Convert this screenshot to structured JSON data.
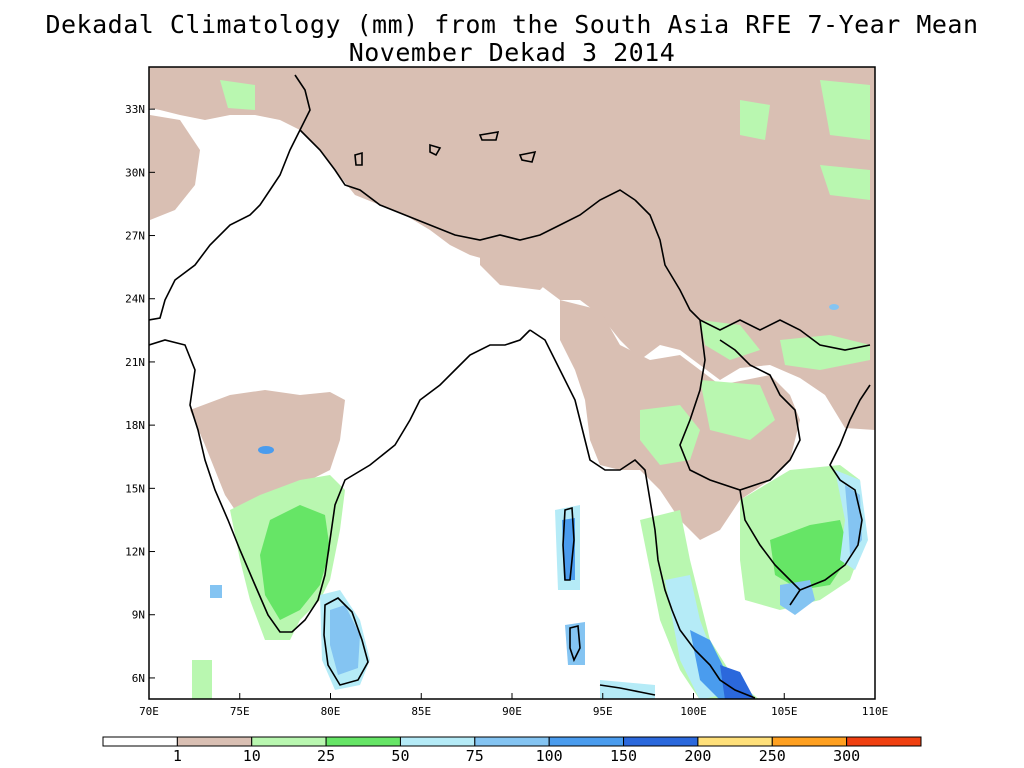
{
  "title": {
    "line1": "Dekadal Climatology (mm) from the South Asia RFE 7-Year Mean",
    "line2": "November Dekad 3 2014"
  },
  "map": {
    "lon_range": [
      70,
      110
    ],
    "lat_range": [
      5,
      35
    ],
    "x_ticks": [
      {
        "value": 70,
        "label": "70E"
      },
      {
        "value": 75,
        "label": "75E"
      },
      {
        "value": 80,
        "label": "80E"
      },
      {
        "value": 85,
        "label": "85E"
      },
      {
        "value": 90,
        "label": "90E"
      },
      {
        "value": 95,
        "label": "95E"
      },
      {
        "value": 100,
        "label": "100E"
      },
      {
        "value": 105,
        "label": "105E"
      },
      {
        "value": 110,
        "label": "110E"
      }
    ],
    "y_ticks": [
      {
        "value": 6,
        "label": "6N"
      },
      {
        "value": 9,
        "label": "9N"
      },
      {
        "value": 12,
        "label": "12N"
      },
      {
        "value": 15,
        "label": "15N"
      },
      {
        "value": 18,
        "label": "18N"
      },
      {
        "value": 21,
        "label": "21N"
      },
      {
        "value": 24,
        "label": "24N"
      },
      {
        "value": 27,
        "label": "27N"
      },
      {
        "value": 30,
        "label": "30N"
      },
      {
        "value": 33,
        "label": "33N"
      }
    ]
  },
  "colorbar": {
    "breaks": [
      "1",
      "10",
      "25",
      "50",
      "75",
      "100",
      "150",
      "200",
      "250",
      "300"
    ],
    "colors": [
      "#ffffff",
      "#d9bfb3",
      "#b9f7b0",
      "#66e566",
      "#b5ebf7",
      "#84c4f2",
      "#4a9cee",
      "#2b68dc",
      "#ffe07a",
      "#ffa020",
      "#f04010"
    ]
  },
  "colors": {
    "brown": "#d9bfb3",
    "light_green": "#b9f7b0",
    "green": "#66e566",
    "light_blue": "#b5ebf7",
    "mid_blue": "#84c4f2",
    "blue": "#4a9cee",
    "dark_blue": "#2b68dc"
  }
}
